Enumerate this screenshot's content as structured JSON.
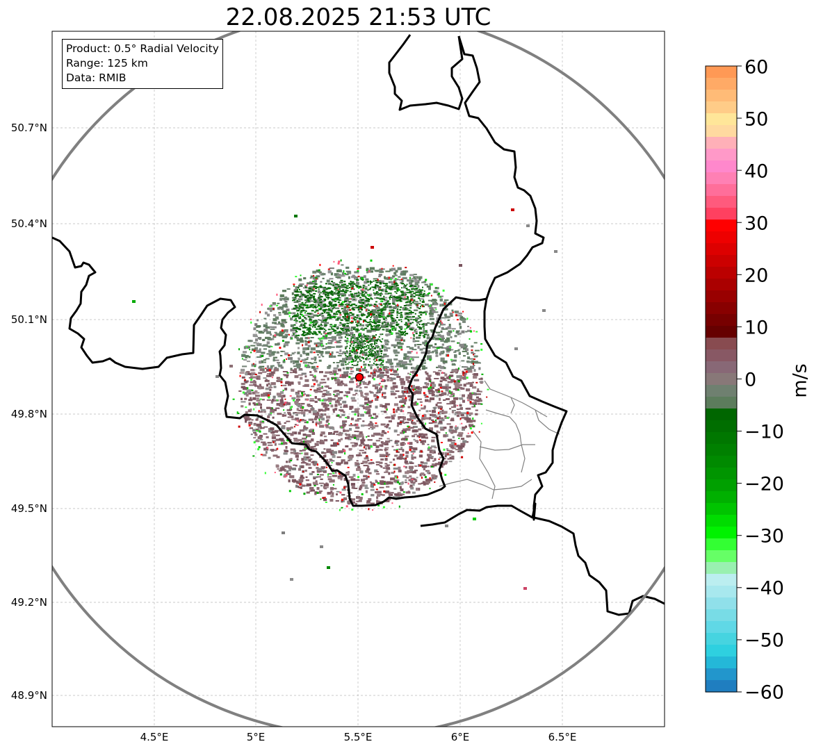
{
  "title": "22.08.2025 21:53 UTC",
  "info": {
    "product": "Product: 0.5° Radial Velocity",
    "range": "Range: 125 km",
    "data": "Data: RMIB"
  },
  "lat_ticks": [
    "50.7°N",
    "50.4°N",
    "50.1°N",
    "49.8°N",
    "49.5°N",
    "49.2°N",
    "48.9°N"
  ],
  "lon_ticks": [
    "4.5°E",
    "5°E",
    "5.5°E",
    "6°E",
    "6.5°E"
  ],
  "colorbar": {
    "label": "m/s",
    "ticks": [
      "60",
      "50",
      "40",
      "30",
      "20",
      "10",
      "0",
      "−10",
      "−20",
      "−30",
      "−40",
      "−50",
      "−60"
    ],
    "colors": [
      "#ff9955",
      "#ffaa66",
      "#ffbb77",
      "#ffcc88",
      "#ffe699",
      "#ffd9a0",
      "#ffb0b8",
      "#ff99c8",
      "#ff88cc",
      "#ff80b4",
      "#ff6e9a",
      "#ff5a7d",
      "#ff4060",
      "#ff0000",
      "#ee0000",
      "#dd0000",
      "#cc0000",
      "#bb0000",
      "#aa0000",
      "#990000",
      "#880000",
      "#770000",
      "#660000",
      "#884b50",
      "#885864",
      "#886876",
      "#887878",
      "#6f8070",
      "#5c7c5c",
      "#006600",
      "#006e00",
      "#007700",
      "#008000",
      "#008a00",
      "#009500",
      "#00a000",
      "#00b000",
      "#00c400",
      "#00dc00",
      "#00f200",
      "#33ff33",
      "#66ff66",
      "#99f0b0",
      "#bbeef0",
      "#a8e8ee",
      "#90e0ea",
      "#78dce6",
      "#60d8e6",
      "#46d4e0",
      "#2ed0e0",
      "#24b8d8",
      "#2296cc",
      "#1f7ec0"
    ]
  },
  "radar_site": {
    "lon": 5.505,
    "lat": 49.914
  },
  "range_circle": {
    "center_lon": 5.5,
    "center_lat": 49.9,
    "range_km": 125
  }
}
